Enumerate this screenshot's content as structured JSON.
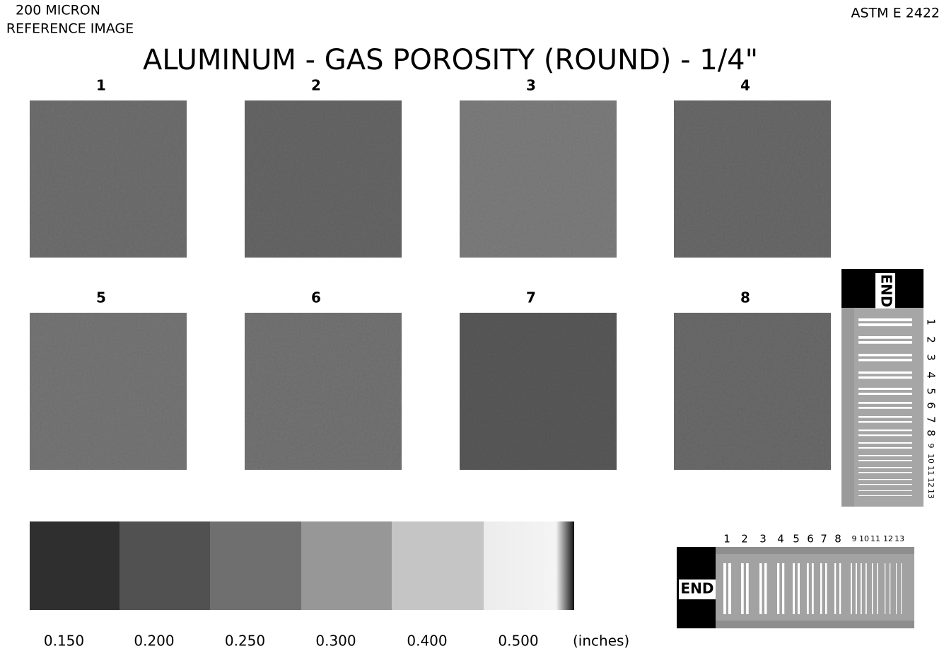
{
  "header": {
    "line1": "200  MICRON",
    "line2": "REFERENCE IMAGE",
    "standard": "ASTM  E  2422",
    "title": "ALUMINUM - GAS POROSITY (ROUND) - 1/4\""
  },
  "panels": [
    "1",
    "2",
    "3",
    "4",
    "5",
    "6",
    "7",
    "8"
  ],
  "step_wedge": {
    "labels": [
      "0.150",
      "0.200",
      "0.250",
      "0.300",
      "0.400",
      "0.500"
    ],
    "unit": "(inches)"
  },
  "iqi_vertical": {
    "end_label": "END",
    "numbers": [
      "1",
      "2",
      "3",
      "4",
      "5",
      "6",
      "7",
      "8",
      "9",
      "10",
      "11",
      "12",
      "13"
    ]
  },
  "iqi_horizontal": {
    "end_label": "END",
    "numbers": [
      "1",
      "2",
      "3",
      "4",
      "5",
      "6",
      "7",
      "8",
      "9",
      "10",
      "11",
      "12",
      "13"
    ]
  }
}
